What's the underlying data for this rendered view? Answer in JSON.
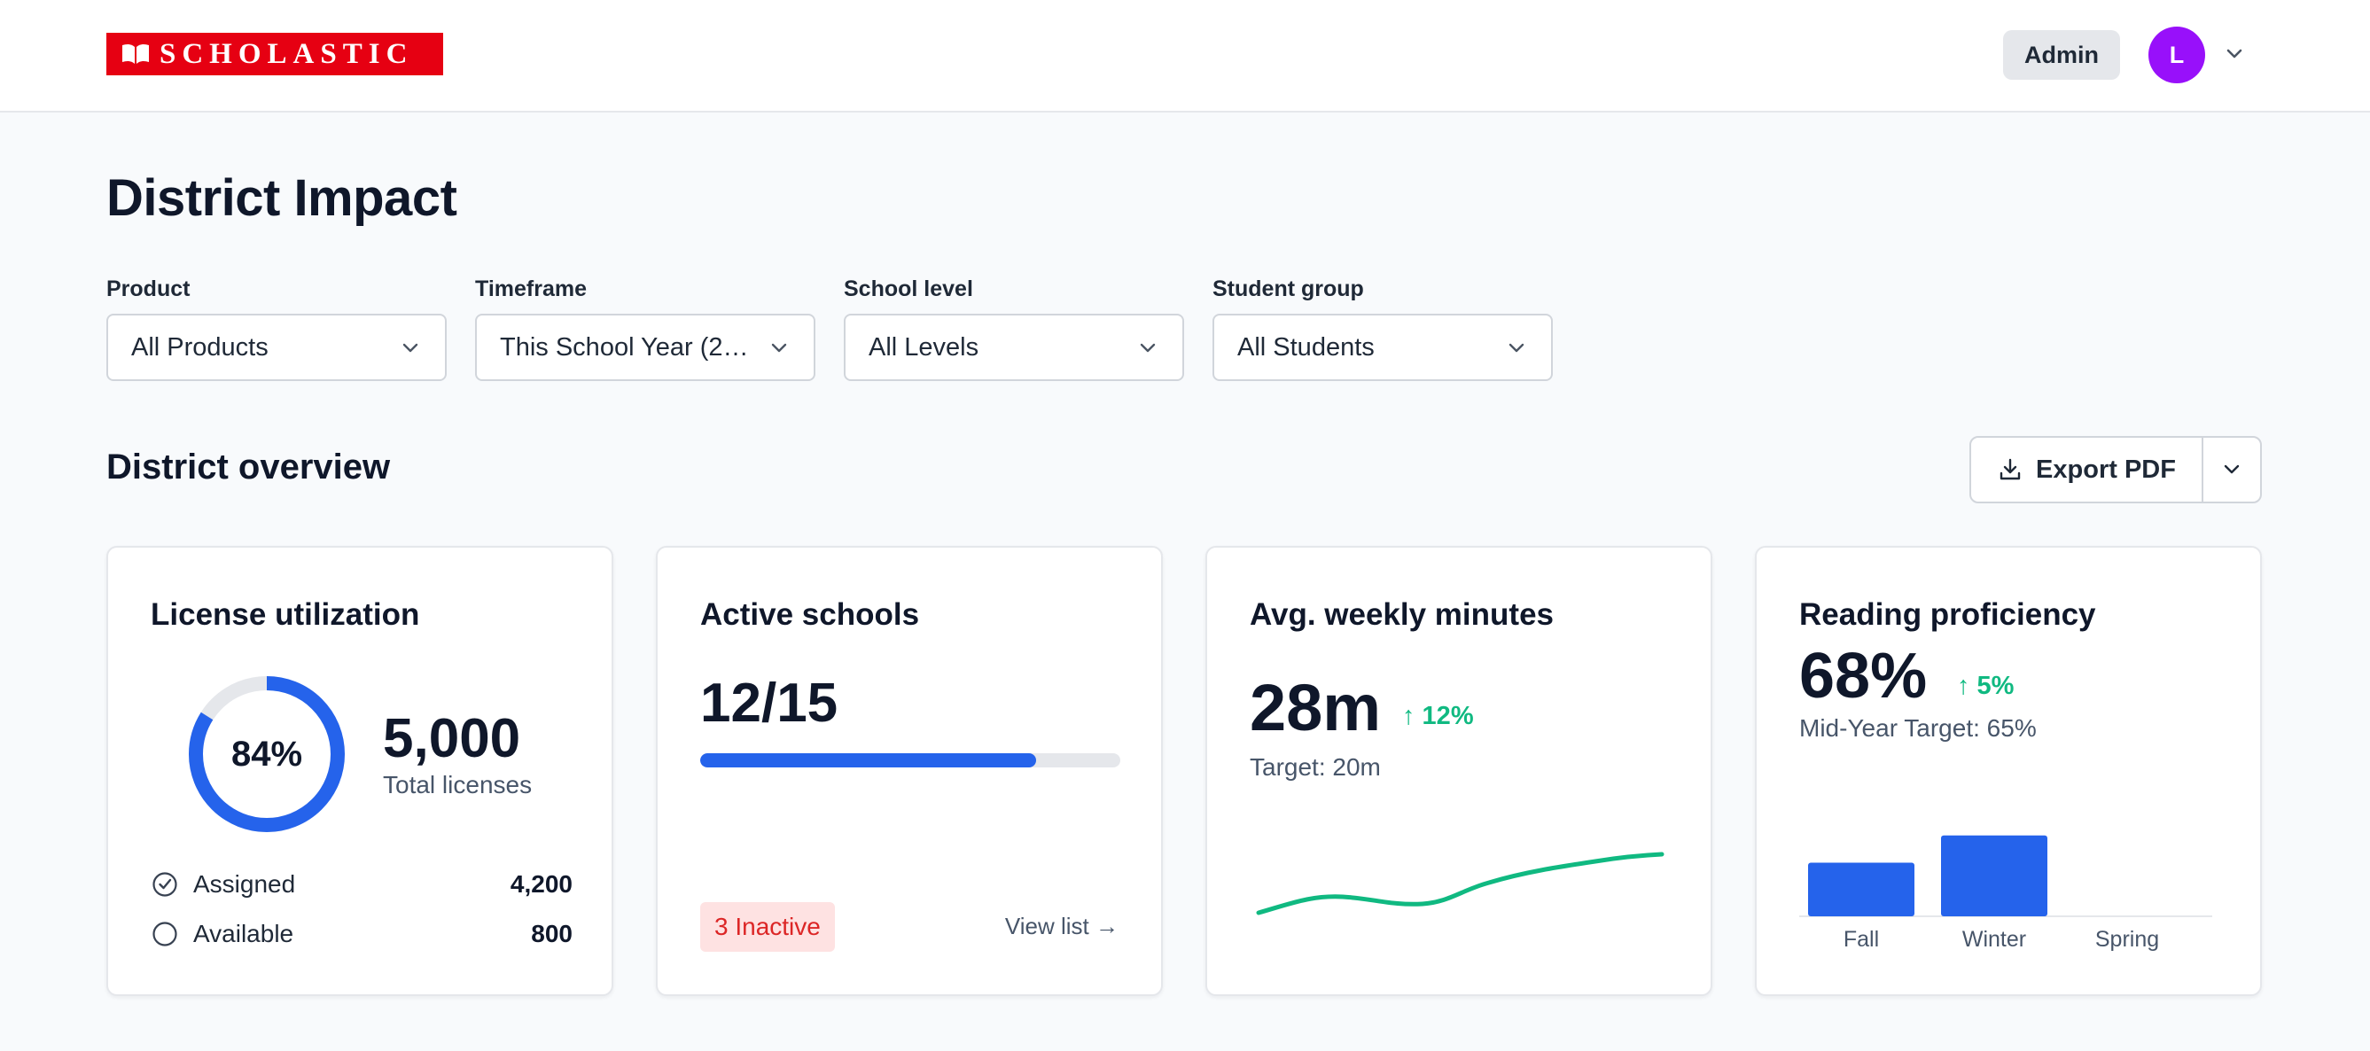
{
  "header": {
    "brand": "SCHOLASTIC",
    "role_badge": "Admin",
    "avatar_initial": "L",
    "icons": {
      "brand": "open-book-icon",
      "user_menu": "chevron-down-icon"
    },
    "colors": {
      "brand": "#e60012",
      "avatar": "#9810fa"
    }
  },
  "page": {
    "title": "District Impact"
  },
  "filters": [
    {
      "label": "Product",
      "value": "All Products"
    },
    {
      "label": "Timeframe",
      "value": "This School Year (20..."
    },
    {
      "label": "School level",
      "value": "All Levels"
    },
    {
      "label": "Student group",
      "value": "All Students"
    }
  ],
  "overview": {
    "title": "District overview",
    "export_label": "Export PDF",
    "icons": {
      "export": "download-icon",
      "export_menu": "chevron-down-icon"
    }
  },
  "cards": {
    "license": {
      "title": "License utilization",
      "percent_label": "84%",
      "percent": 84,
      "total": "5,000",
      "total_label": "Total licenses",
      "assigned_label": "Assigned",
      "assigned_value": "4,200",
      "available_label": "Available",
      "available_value": "800",
      "colors": {
        "ring": "#2563eb",
        "track": "#e5e7eb"
      }
    },
    "schools": {
      "title": "Active schools",
      "ratio": "12/15",
      "progress": 0.8,
      "inactive_badge": "3 Inactive",
      "view_list": "View list →",
      "colors": {
        "bar": "#2563eb",
        "inactive": "#dc2626"
      }
    },
    "minutes": {
      "title": "Avg. weekly minutes",
      "value": "28m",
      "trend": "↑ 12%",
      "target": "Target: 20m",
      "colors": {
        "trend": "#10b981",
        "sparkline": "#10b981"
      }
    },
    "proficiency": {
      "title": "Reading proficiency",
      "value": "68%",
      "trend": "↑ 5%",
      "target": "Mid-Year Target: 65%",
      "colors": {
        "bar": "#2563eb"
      }
    }
  },
  "chart_data": [
    {
      "type": "bar",
      "title": "",
      "categories": [
        "Fall",
        "Winter",
        "Spring"
      ],
      "values": [
        55,
        83,
        0
      ],
      "ylim": [
        0,
        100
      ]
    }
  ]
}
